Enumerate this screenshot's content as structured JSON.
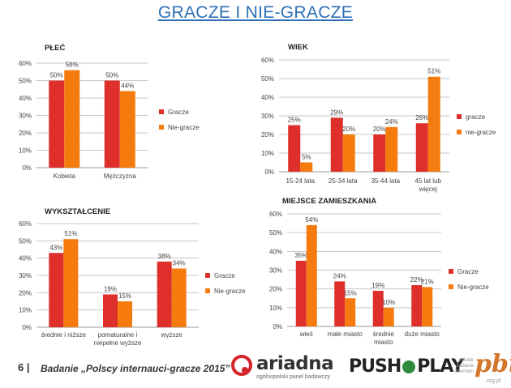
{
  "page": {
    "title": "GRACZE I NIE-GRACZE",
    "page_number": "6 |",
    "footer_text": "Badanie „Polscy internauci-gracze 2015”"
  },
  "logos": {
    "ariadna_word": "ariadna",
    "ariadna_sub": "ogólnopolski panel badawczy",
    "push_left": "PUSH",
    "push_right": "PLAY",
    "pbi_sub": "polskie badania internetu",
    "pbi_word": "pbi",
    "pbi_org": ".org.pl"
  },
  "colors": {
    "series_1": "#de2f2a",
    "series_2": "#f57b0f",
    "grid": "#c6c6c6",
    "title": "#2e6fb5"
  },
  "chart_data": [
    {
      "id": "plec",
      "type": "bar",
      "title": "PŁEĆ",
      "categories": [
        [
          "Kobieta"
        ],
        [
          "Mężczyzna"
        ]
      ],
      "series": [
        {
          "name": "Gracze",
          "values": [
            50,
            50
          ],
          "labels": [
            "50%",
            "50%"
          ]
        },
        {
          "name": "Nie-gracze",
          "values": [
            56,
            44
          ],
          "labels": [
            "56%",
            "44%"
          ]
        }
      ],
      "ylim": [
        0,
        60
      ],
      "yticks": [
        "0%",
        "10%",
        "20%",
        "30%",
        "40%",
        "50%",
        "60%"
      ],
      "grid": true,
      "legend": "right"
    },
    {
      "id": "wiek",
      "type": "bar",
      "title": "WIEK",
      "categories": [
        [
          "15-24 lata"
        ],
        [
          "25-34 lata"
        ],
        [
          "35-44 lata"
        ],
        [
          "45 lat lub",
          "więcej"
        ]
      ],
      "series": [
        {
          "name": "gracze",
          "values": [
            25,
            29,
            20,
            26
          ],
          "labels": [
            "25%",
            "29%",
            "20%",
            "26%"
          ]
        },
        {
          "name": "nie-gracze",
          "values": [
            5,
            20,
            24,
            51
          ],
          "labels": [
            "5%",
            "20%",
            "24%",
            "51%"
          ]
        }
      ],
      "ylim": [
        0,
        60
      ],
      "yticks": [
        "0%",
        "10%",
        "20%",
        "30%",
        "40%",
        "50%",
        "60%"
      ],
      "grid": true,
      "legend": "right"
    },
    {
      "id": "wyksztalcenie",
      "type": "bar",
      "title": "WYKSZTAŁCENIE",
      "categories": [
        [
          "średnie i niższe"
        ],
        [
          "pomaturalne i",
          "niepełne wyższe"
        ],
        [
          "wyższe"
        ]
      ],
      "series": [
        {
          "name": "Gracze",
          "values": [
            43,
            19,
            38
          ],
          "labels": [
            "43%",
            "19%",
            "38%"
          ]
        },
        {
          "name": "Nie-gracze",
          "values": [
            51,
            15,
            34
          ],
          "labels": [
            "51%",
            "15%",
            "34%"
          ]
        }
      ],
      "ylim": [
        0,
        60
      ],
      "yticks": [
        "0%",
        "10%",
        "20%",
        "30%",
        "40%",
        "50%",
        "60%"
      ],
      "grid": true,
      "legend": "right"
    },
    {
      "id": "miejsce",
      "type": "bar",
      "title": "MIEJSCE ZAMIESZKANIA",
      "categories": [
        [
          "wieś"
        ],
        [
          "małe miasto"
        ],
        [
          "średnie",
          "miasto"
        ],
        [
          "duże miasto"
        ]
      ],
      "series": [
        {
          "name": "Gracze",
          "values": [
            35,
            24,
            19,
            22
          ],
          "labels": [
            "35%",
            "24%",
            "19%",
            "22%"
          ]
        },
        {
          "name": "Nie-gracze",
          "values": [
            54,
            15,
            10,
            21
          ],
          "labels": [
            "54%",
            "15%",
            "10%",
            "21%"
          ]
        }
      ],
      "ylim": [
        0,
        60
      ],
      "yticks": [
        "0%",
        "10%",
        "20%",
        "30%",
        "40%",
        "50%",
        "60%"
      ],
      "grid": true,
      "legend": "right"
    }
  ]
}
